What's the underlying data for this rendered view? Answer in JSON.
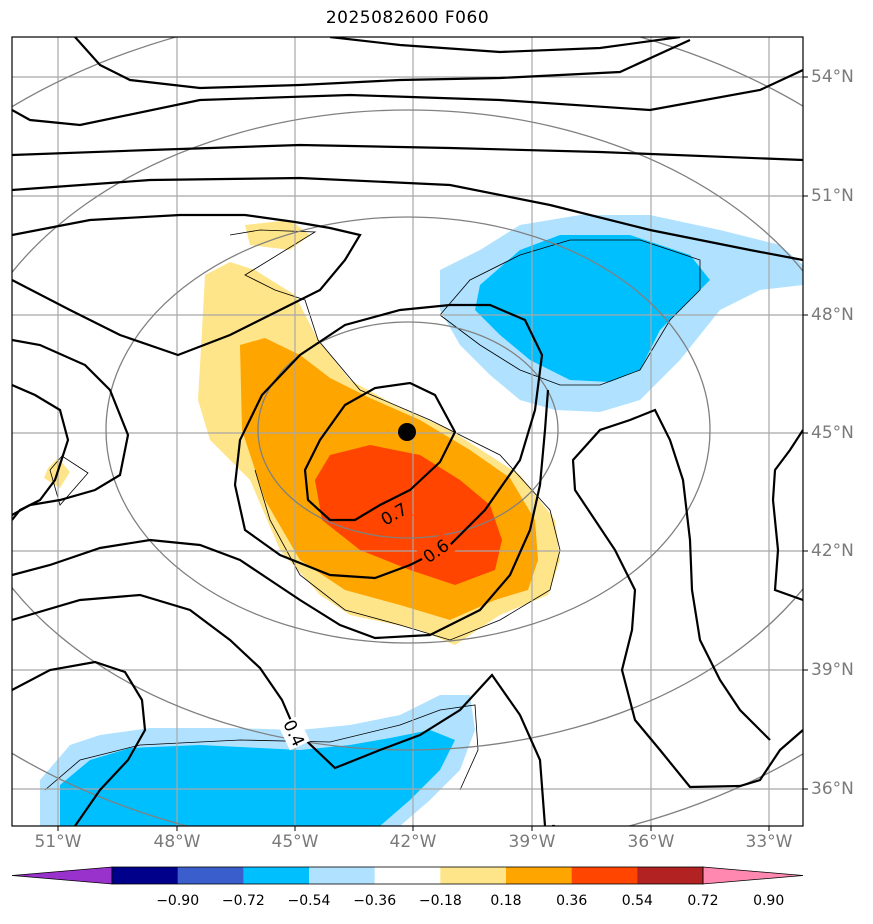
{
  "title": "2025082600 F060",
  "lon_labels": [
    "51°W",
    "48°W",
    "45°W",
    "42°W",
    "39°W",
    "36°W",
    "33°W"
  ],
  "lat_labels": [
    "54°N",
    "51°N",
    "48°N",
    "45°N",
    "42°N",
    "39°N",
    "36°N"
  ],
  "contour_labels": [
    "0.7",
    "0.6",
    "0.4"
  ],
  "colorbar": {
    "ticks": [
      "−0.90",
      "−0.72",
      "−0.54",
      "−0.36",
      "−0.18",
      "0.18",
      "0.36",
      "0.54",
      "0.72",
      "0.90"
    ],
    "colors": [
      "#9932cc",
      "#00008b",
      "#3a5fcd",
      "#00bfff",
      "#b0e2ff",
      "#ffffff",
      "#ffe58a",
      "#ffa500",
      "#ff4500",
      "#b22222",
      "#ff88b0"
    ]
  },
  "center_marker": "filled-circle"
}
